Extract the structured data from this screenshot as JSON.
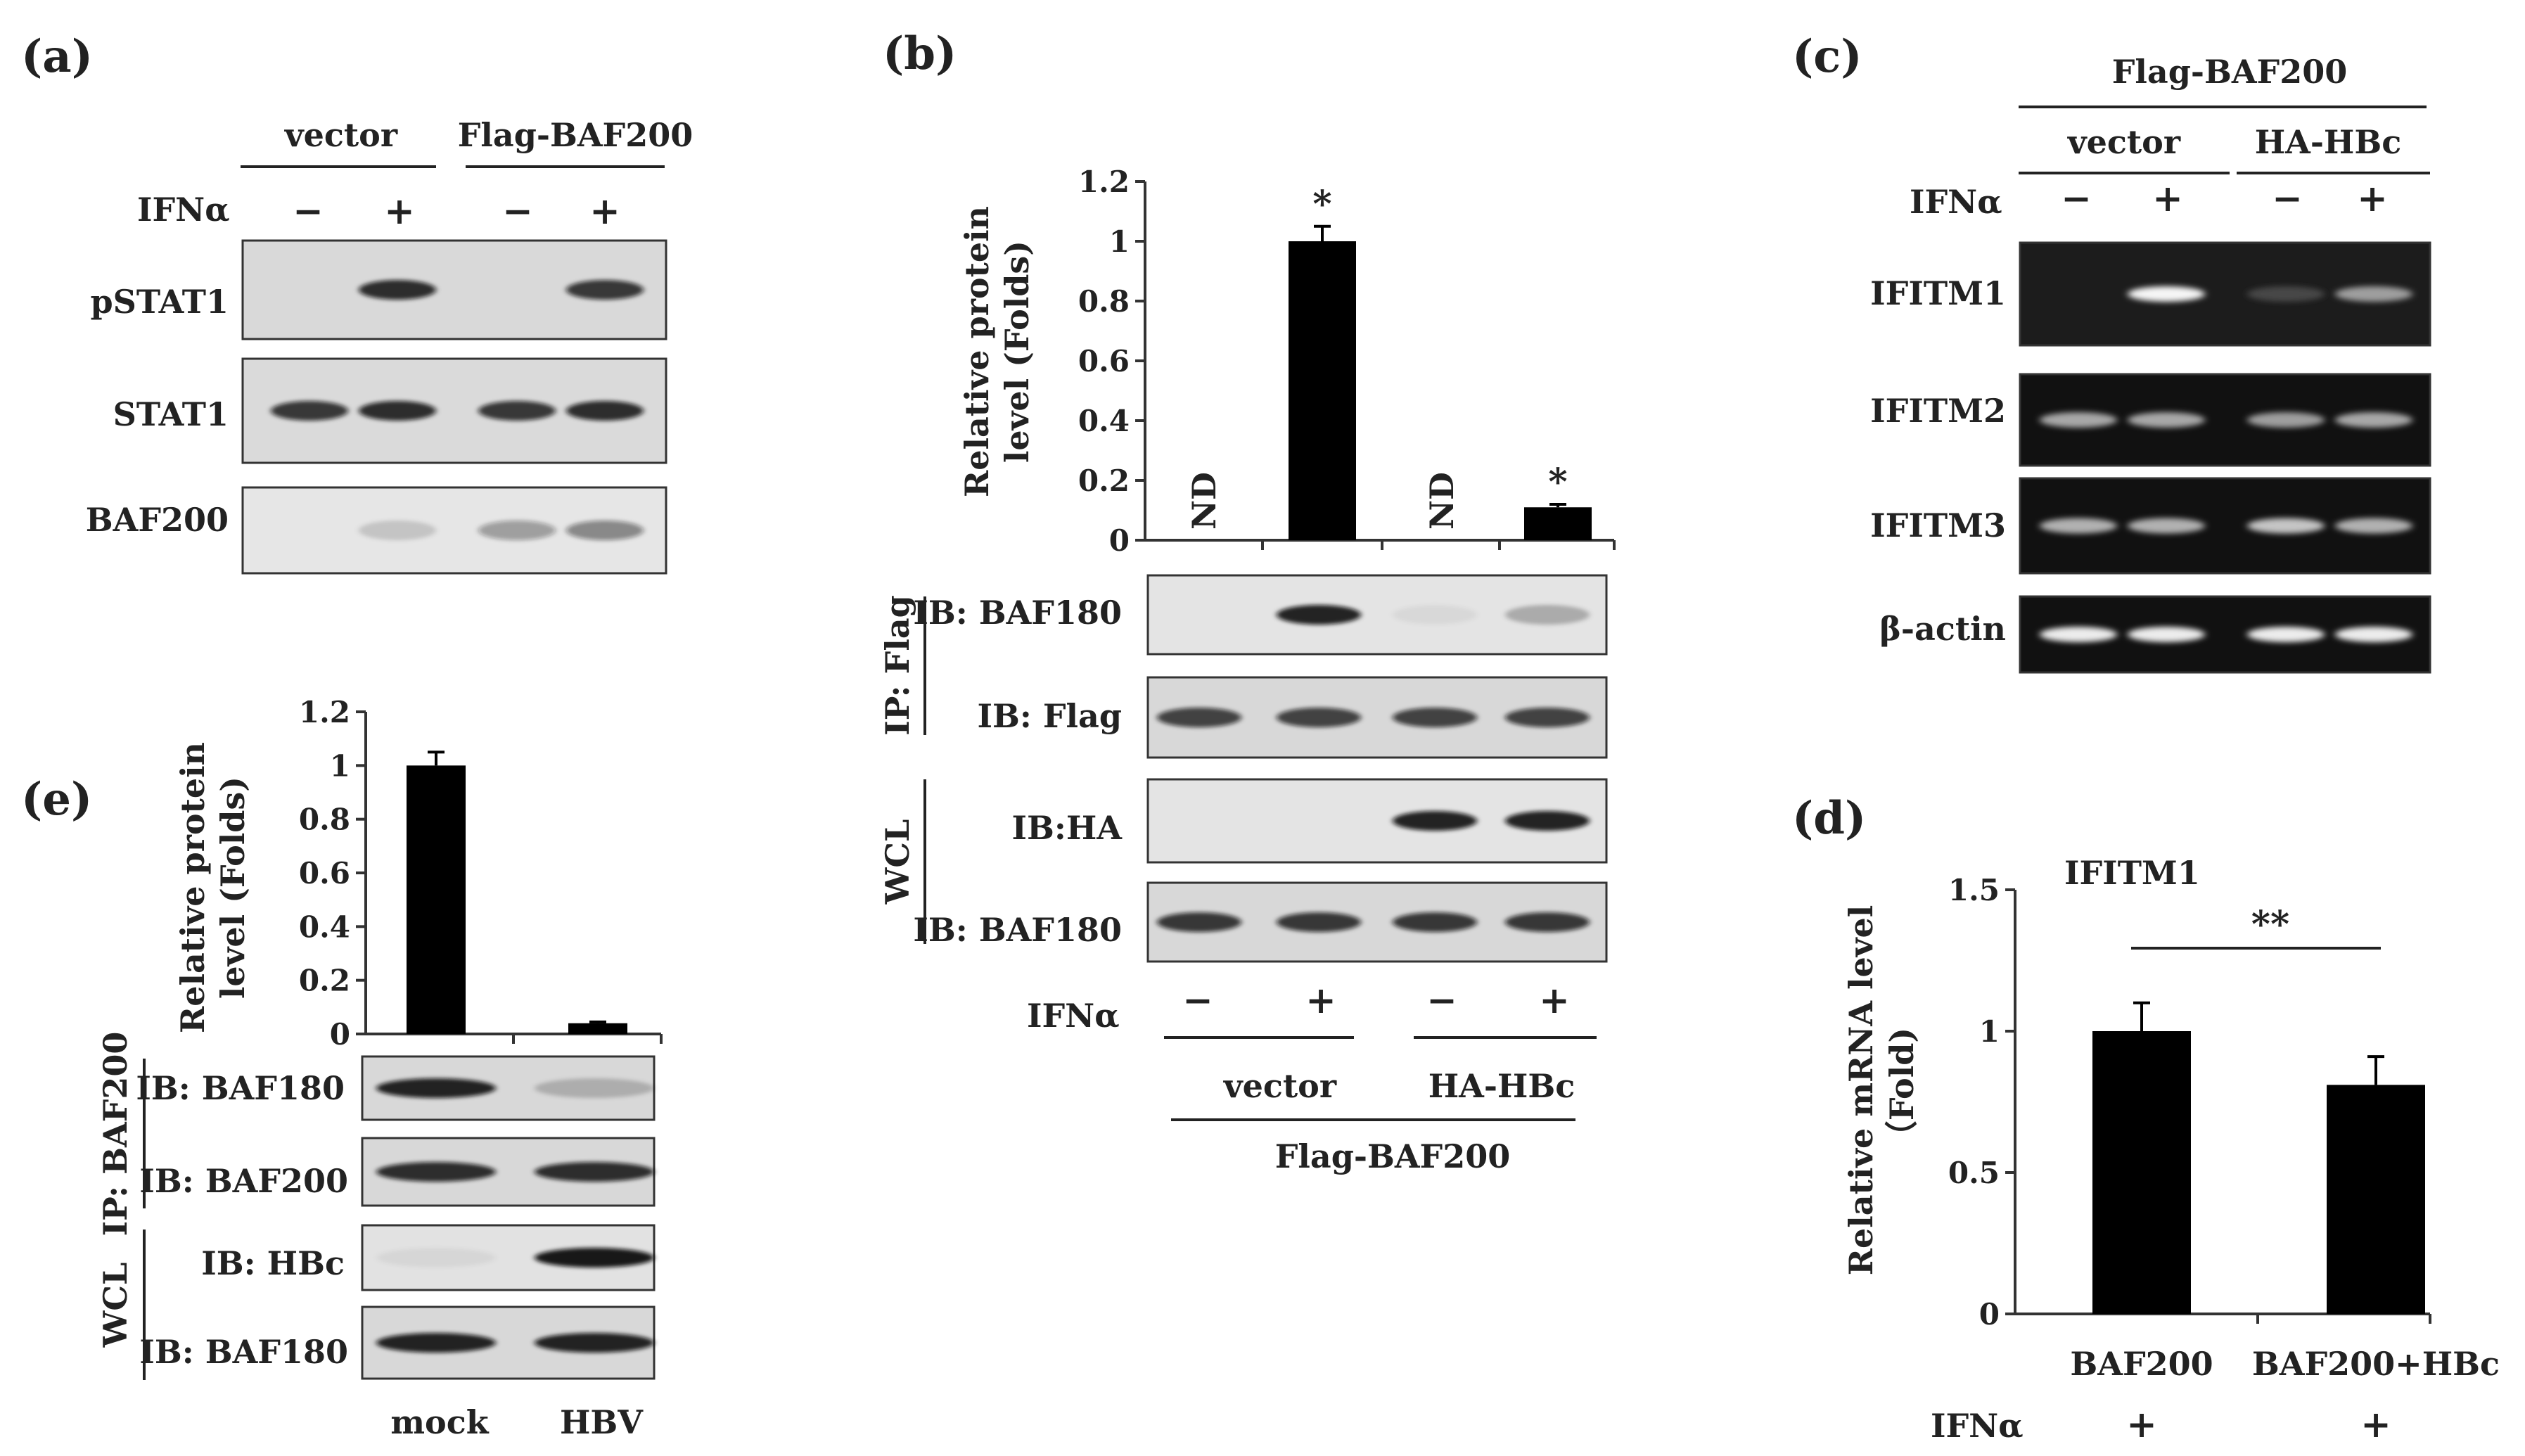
{
  "panels": {
    "a": {
      "label": "(a)",
      "groups": [
        "vector",
        "Flag-BAF200"
      ],
      "treatment": "IFNα",
      "signs": [
        "−",
        "+",
        "−",
        "+"
      ],
      "blots": [
        {
          "label": "pSTAT1",
          "intensity": [
            0,
            0.85,
            0,
            0.8
          ],
          "background": "#d9d9d9"
        },
        {
          "label": "STAT1",
          "intensity": [
            0.8,
            0.85,
            0.8,
            0.85
          ],
          "background": "#dadada"
        },
        {
          "label": "BAF200",
          "intensity": [
            0,
            0.15,
            0.35,
            0.45
          ],
          "background": "#e6e6e6"
        }
      ]
    },
    "b": {
      "label": "(b)",
      "chart_data": {
        "type": "bar",
        "categories": [
          "vector IFNα−",
          "vector IFNα+",
          "HA-HBc IFNα−",
          "HA-HBc IFNα+"
        ],
        "values": [
          0,
          1.0,
          0,
          0.11
        ],
        "errors": [
          0,
          0.05,
          0,
          0.01
        ],
        "bar_labels": [
          "ND",
          "",
          "ND",
          ""
        ],
        "significance": [
          "",
          "*",
          "",
          "*"
        ],
        "ylabel": [
          "Relative protein",
          "level (Folds)"
        ],
        "ylim": [
          0,
          1.2
        ],
        "yticks": [
          "0",
          "0.2",
          "0.4",
          "0.6",
          "0.8",
          "1",
          "1.2"
        ]
      },
      "ip_label": "IP: Flag",
      "wcl_label": "WCL",
      "blots": [
        {
          "label": "IB: BAF180",
          "intensity": [
            0,
            0.9,
            0.05,
            0.25
          ],
          "background": "#e4e4e4"
        },
        {
          "label": "IB: Flag",
          "intensity": [
            0.75,
            0.75,
            0.75,
            0.75
          ],
          "background": "#d8d8d8"
        },
        {
          "label": "IB:HA",
          "intensity": [
            0,
            0,
            0.9,
            0.9
          ],
          "background": "#e4e4e4"
        },
        {
          "label": "IB: BAF180",
          "intensity": [
            0.8,
            0.8,
            0.8,
            0.8
          ],
          "background": "#d8d8d8"
        }
      ],
      "treatment": "IFNα",
      "signs": [
        "−",
        "+",
        "−",
        "+"
      ],
      "groups": [
        "vector",
        "HA-HBc"
      ],
      "construct": "Flag-BAF200"
    },
    "c": {
      "label": "(c)",
      "construct": "Flag-BAF200",
      "groups": [
        "vector",
        "HA-HBc"
      ],
      "treatment": "IFNα",
      "signs": [
        "−",
        "+",
        "−",
        "+"
      ],
      "gels": [
        {
          "label": "IFITM1",
          "intensity": [
            0,
            0.95,
            0.05,
            0.5
          ],
          "background": "#1c1c1c"
        },
        {
          "label": "IFITM2",
          "intensity": [
            0.55,
            0.55,
            0.5,
            0.55
          ],
          "background": "#111111"
        },
        {
          "label": "IFITM3",
          "intensity": [
            0.6,
            0.6,
            0.7,
            0.6
          ],
          "background": "#111111"
        },
        {
          "label": "β-actin",
          "intensity": [
            0.9,
            0.9,
            0.9,
            0.9
          ],
          "background": "#111111"
        }
      ]
    },
    "d": {
      "label": "(d)",
      "chart_data": {
        "type": "bar",
        "title": "IFITM1",
        "categories": [
          "BAF200",
          "BAF200+HBc"
        ],
        "values": [
          1.0,
          0.81
        ],
        "errors": [
          0.1,
          0.1
        ],
        "ylabel": [
          "Relative mRNA level",
          "（Fold)"
        ],
        "ylim": [
          0,
          1.5
        ],
        "yticks": [
          "0",
          "0.5",
          "1",
          "1.5"
        ],
        "significance": "**"
      },
      "treatment": "IFNα",
      "signs": [
        "+",
        "+"
      ]
    },
    "e": {
      "label": "(e)",
      "chart_data": {
        "type": "bar",
        "categories": [
          "mock",
          "HBV"
        ],
        "values": [
          1.0,
          0.04
        ],
        "errors": [
          0.05,
          0.005
        ],
        "ylabel": [
          "Relative protein",
          "level (Folds)"
        ],
        "ylim": [
          0,
          1.2
        ],
        "yticks": [
          "0",
          "0.2",
          "0.4",
          "0.6",
          "0.8",
          "1",
          "1.2"
        ]
      },
      "ip_label": "IP: BAF200",
      "wcl_label": "WCL",
      "blots": [
        {
          "label": "IB: BAF180",
          "intensity": [
            0.9,
            0.2
          ],
          "background": "#d8d8d8"
        },
        {
          "label": "IB: BAF200",
          "intensity": [
            0.85,
            0.85
          ],
          "background": "#d8d8d8"
        },
        {
          "label": "IB: HBc",
          "intensity": [
            0.05,
            0.95
          ],
          "background": "#e2e2e2"
        },
        {
          "label": "IB: BAF180",
          "intensity": [
            0.9,
            0.9
          ],
          "background": "#d8d8d8"
        }
      ],
      "samples": [
        "mock",
        "HBV"
      ]
    }
  }
}
